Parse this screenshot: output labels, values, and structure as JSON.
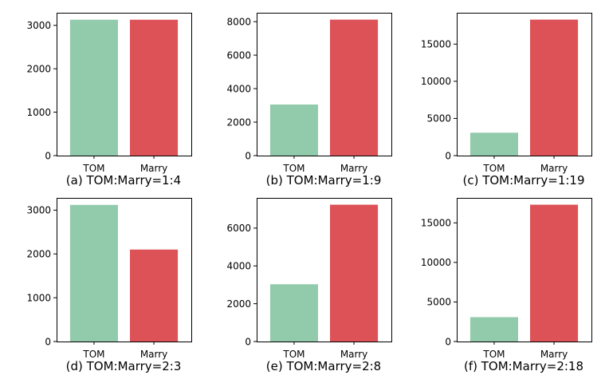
{
  "colors": {
    "tom": "#92cbab",
    "marry": "#dc5257",
    "axis": "#000000",
    "background": "#ffffff"
  },
  "chart_data": [
    {
      "type": "bar",
      "caption": "(a) TOM:Marry=1:4",
      "categories": [
        "TOM",
        "Marry"
      ],
      "values": [
        3130,
        3130
      ],
      "ylim": [
        0,
        3290
      ],
      "yticks": [
        0,
        1000,
        2000,
        3000
      ],
      "ytick_labels": [
        "0",
        "1000",
        "2000",
        "3000"
      ],
      "grid": false
    },
    {
      "type": "bar",
      "caption": "(b) TOM:Marry=1:9",
      "categories": [
        "TOM",
        "Marry"
      ],
      "values": [
        3050,
        8120
      ],
      "ylim": [
        0,
        8530
      ],
      "yticks": [
        0,
        2000,
        4000,
        6000,
        8000
      ],
      "ytick_labels": [
        "0",
        "2000",
        "4000",
        "6000",
        "8000"
      ],
      "grid": false
    },
    {
      "type": "bar",
      "caption": "(c) TOM:Marry=1:19",
      "categories": [
        "TOM",
        "Marry"
      ],
      "values": [
        3080,
        18300
      ],
      "ylim": [
        0,
        19220
      ],
      "yticks": [
        0,
        5000,
        10000,
        15000
      ],
      "ytick_labels": [
        "0",
        "5000",
        "10000",
        "15000"
      ],
      "grid": false
    },
    {
      "type": "bar",
      "caption": "(d) TOM:Marry=2:3",
      "categories": [
        "TOM",
        "Marry"
      ],
      "values": [
        3120,
        2100
      ],
      "ylim": [
        0,
        3280
      ],
      "yticks": [
        0,
        1000,
        2000,
        3000
      ],
      "ytick_labels": [
        "0",
        "1000",
        "2000",
        "3000"
      ],
      "grid": false
    },
    {
      "type": "bar",
      "caption": "(e) TOM:Marry=2:8",
      "categories": [
        "TOM",
        "Marry"
      ],
      "values": [
        3030,
        7240
      ],
      "ylim": [
        0,
        7600
      ],
      "yticks": [
        0,
        2000,
        4000,
        6000
      ],
      "ytick_labels": [
        "0",
        "2000",
        "4000",
        "6000"
      ],
      "grid": false
    },
    {
      "type": "bar",
      "caption": "(f) TOM:Marry=2:18",
      "categories": [
        "TOM",
        "Marry"
      ],
      "values": [
        3080,
        17300
      ],
      "ylim": [
        0,
        18160
      ],
      "yticks": [
        0,
        5000,
        10000,
        15000
      ],
      "ytick_labels": [
        "0",
        "5000",
        "10000",
        "15000"
      ],
      "grid": false
    }
  ]
}
